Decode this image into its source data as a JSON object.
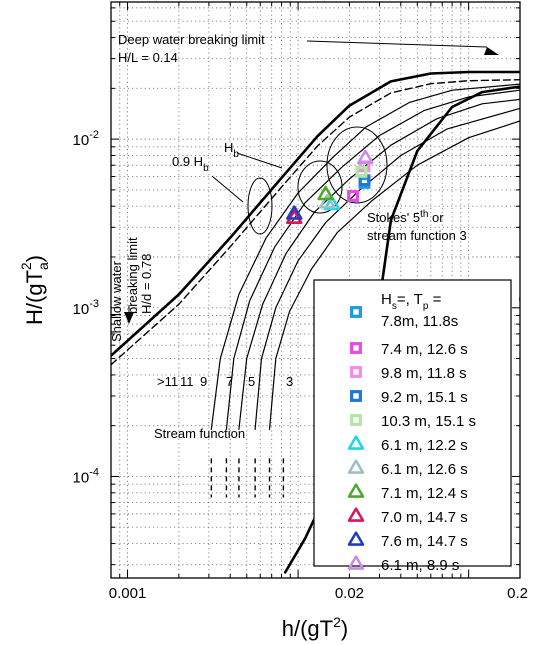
{
  "chart_data": {
    "type": "scatter",
    "xscale": "log",
    "yscale": "log",
    "xlim": [
      0.0008,
      0.2
    ],
    "ylim": [
      2.5e-05,
      0.065
    ],
    "xlabel": {
      "base": "h/(gT",
      "sup": "2",
      "tail": ")"
    },
    "ylabel": {
      "base": "H/(gT",
      "sub": "a",
      "sup": "2",
      "tail": ")"
    },
    "xticks": [
      {
        "value": 0.001,
        "label": "0.001"
      },
      {
        "value": 0.02,
        "label": "0.02"
      },
      {
        "value": 0.2,
        "label": "0.2"
      }
    ],
    "yticks": [
      {
        "value": 0.0001,
        "base": "10",
        "exp": "-4"
      },
      {
        "value": 0.001,
        "base": "10",
        "exp": "-3"
      },
      {
        "value": 0.01,
        "base": "10",
        "exp": "-2"
      }
    ],
    "grid": true,
    "legend": {
      "position": "lower-right",
      "title": {
        "h": "H",
        "hsub": "s",
        "mid": "=, T",
        "tsub": "p",
        "end": " ="
      },
      "first_entry_second_line": "7.8m, 11.8s"
    },
    "series": [
      {
        "name": "",
        "marker": "square",
        "color": "#1E9BE6",
        "x": 0.0245,
        "y": 0.0055
      },
      {
        "name": "7.4 m, 12.6 s",
        "marker": "square",
        "color": "#E64BE6",
        "x": 0.021,
        "y": 0.0046
      },
      {
        "name": "9.8 m, 11.8 s",
        "marker": "square",
        "color": "#F28CE6",
        "x": 0.0245,
        "y": 0.0069
      },
      {
        "name": "9.2 m, 15.1 s",
        "marker": "square",
        "color": "#1E78D7",
        "x": 0.0245,
        "y": 0.0057
      },
      {
        "name": "10.3 m, 15.1 s",
        "marker": "square",
        "color": "#B4E6A5",
        "x": 0.0235,
        "y": 0.0064
      },
      {
        "name": "6.1 m, 12.2 s",
        "marker": "triangle",
        "color": "#1ED7E6",
        "x": 0.0158,
        "y": 0.0041
      },
      {
        "name": "6.1 m, 12.6 s",
        "marker": "triangle",
        "color": "#A0BEC8",
        "x": 0.0148,
        "y": 0.0042
      },
      {
        "name": "7.1 m, 12.4 s",
        "marker": "triangle",
        "color": "#4BAA2D",
        "x": 0.0145,
        "y": 0.0047
      },
      {
        "name": "7.0 m, 14.7 s",
        "marker": "triangle",
        "color": "#DC145A",
        "x": 0.0095,
        "y": 0.0034
      },
      {
        "name": "7.6 m, 14.7 s",
        "marker": "triangle",
        "color": "#1E3CC8",
        "x": 0.0095,
        "y": 0.0036
      },
      {
        "name": "6.1 m, 8.9 s",
        "marker": "triangle",
        "color": "#C88CE6",
        "x": 0.0248,
        "y": 0.0077
      }
    ],
    "annotations": {
      "deep_water": [
        "Deep water breaking limit",
        "H/L = 0.14"
      ],
      "shallow_water": [
        "Shallow water",
        "breaking limit",
        "H/d = 0.78"
      ],
      "hb": {
        "base": "H",
        "sub": "b"
      },
      "hb09": {
        "base": "0.9 H",
        "sub": "b"
      },
      "stokes": {
        "line1_a": "Stokes' 5",
        "line1_sup": "th",
        "line1_b": " or",
        "line2": "stream function 3"
      },
      "stream_function": "Stream function",
      "sf_orders": [
        ">11",
        "11",
        "9",
        "7",
        "5",
        "3"
      ]
    }
  }
}
